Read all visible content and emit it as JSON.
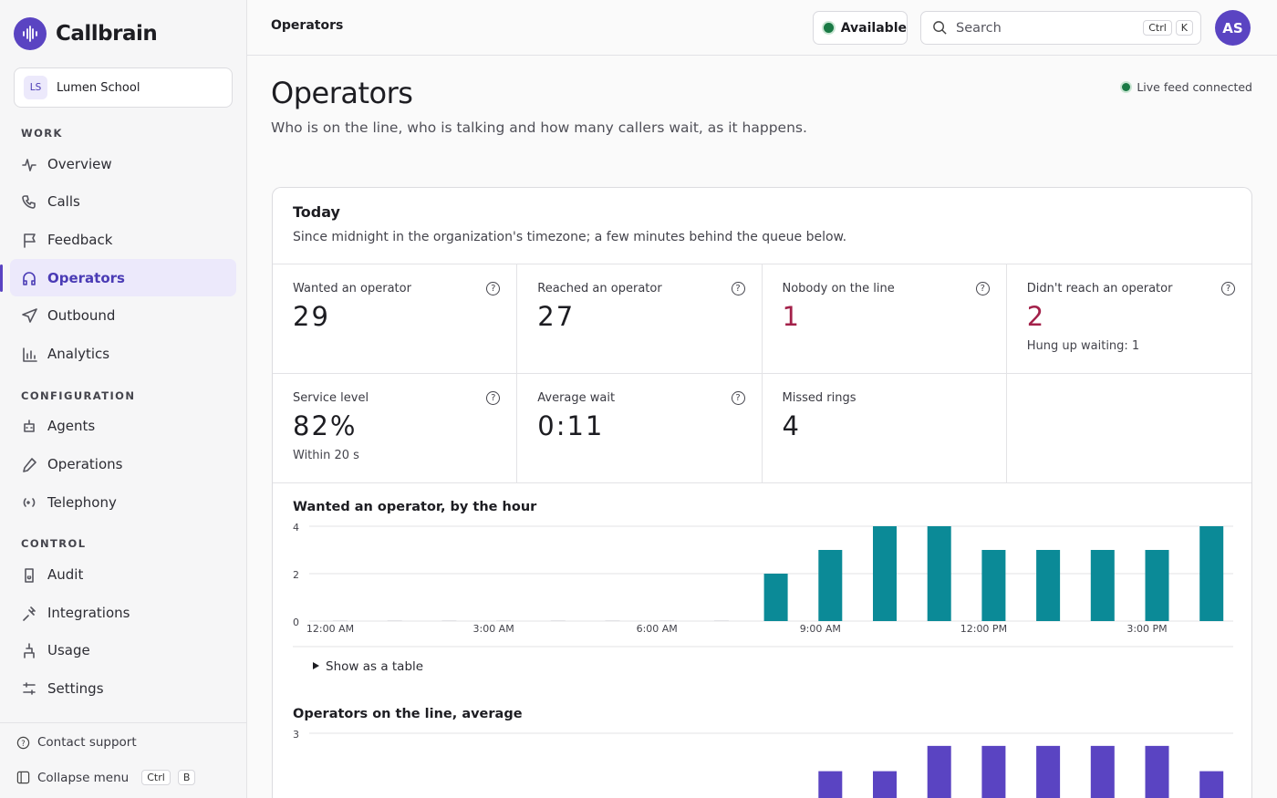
{
  "sidebar": {
    "brand": "Callbrain",
    "org": {
      "initials": "LS",
      "name": "Lumen School"
    },
    "sections": [
      {
        "title": "WORK",
        "items": [
          {
            "label": "Overview"
          },
          {
            "label": "Calls"
          },
          {
            "label": "Feedback"
          },
          {
            "label": "Operators",
            "active": true
          },
          {
            "label": "Outbound"
          },
          {
            "label": "Analytics"
          }
        ]
      },
      {
        "title": "CONFIGURATION",
        "items": [
          {
            "label": "Agents"
          },
          {
            "label": "Operations"
          },
          {
            "label": "Telephony"
          }
        ]
      },
      {
        "title": "CONTROL",
        "items": [
          {
            "label": "Audit"
          },
          {
            "label": "Integrations"
          },
          {
            "label": "Usage"
          },
          {
            "label": "Settings"
          }
        ]
      }
    ],
    "footer": {
      "support": "Contact support",
      "collapse": "Collapse menu",
      "shortcut": [
        "Ctrl",
        "B"
      ]
    }
  },
  "topbar": {
    "crumb": "Operators",
    "status": "Available",
    "search": "Search",
    "shortcut": [
      "Ctrl",
      "K"
    ],
    "avatar": "AS"
  },
  "header": {
    "title": "Operators",
    "subtitle": "Who is on the line, who is talking and how many callers wait, as it happens.",
    "live": "Live feed connected"
  },
  "today": {
    "title": "Today",
    "subtitle": "Since midnight in the organization's timezone; a few minutes behind the queue below.",
    "stats": [
      {
        "label": "Wanted an operator",
        "value": 29,
        "help": true
      },
      {
        "label": "Reached an operator",
        "value": 27,
        "help": true
      },
      {
        "label": "Nobody on the line",
        "value": 1,
        "help": true,
        "alert": true
      },
      {
        "label": "Didn't reach an operator",
        "value": 2,
        "note": "Hung up waiting: 1",
        "help": true,
        "alert": true
      },
      {
        "label": "Service level",
        "value": "82%",
        "note": "Within 20 s",
        "help": true
      },
      {
        "label": "Average wait",
        "value": "0:11",
        "help": true
      },
      {
        "label": "Missed rings",
        "value": 4
      }
    ],
    "table_toggle": "Show as a table"
  },
  "chart_data": [
    {
      "type": "bar",
      "title": "Wanted an operator, by the hour",
      "color": "#0b8a97",
      "grid": true,
      "categories": [
        "12:00 AM",
        null,
        null,
        "3:00 AM",
        null,
        null,
        "6:00 AM",
        null,
        null,
        "9:00 AM",
        null,
        null,
        "12:00 PM",
        null,
        null,
        "3:00 PM",
        null
      ],
      "values": [
        0,
        0,
        0,
        0,
        0,
        0,
        0,
        0,
        2,
        3,
        4,
        4,
        3,
        3,
        3,
        3,
        4
      ],
      "ylim": [
        0,
        4
      ],
      "yticks": [
        0,
        2,
        4
      ]
    },
    {
      "type": "bar",
      "title": "Operators on the line, average",
      "color": "#5a44c2",
      "grid": true,
      "values": [
        0,
        0,
        0,
        0,
        0,
        0,
        0,
        0,
        0,
        1.8,
        1.8,
        2.6,
        2.6,
        2.6,
        2.6,
        2.6,
        1.8
      ],
      "ylim": [
        0,
        3
      ],
      "yticks": [
        3
      ]
    }
  ]
}
